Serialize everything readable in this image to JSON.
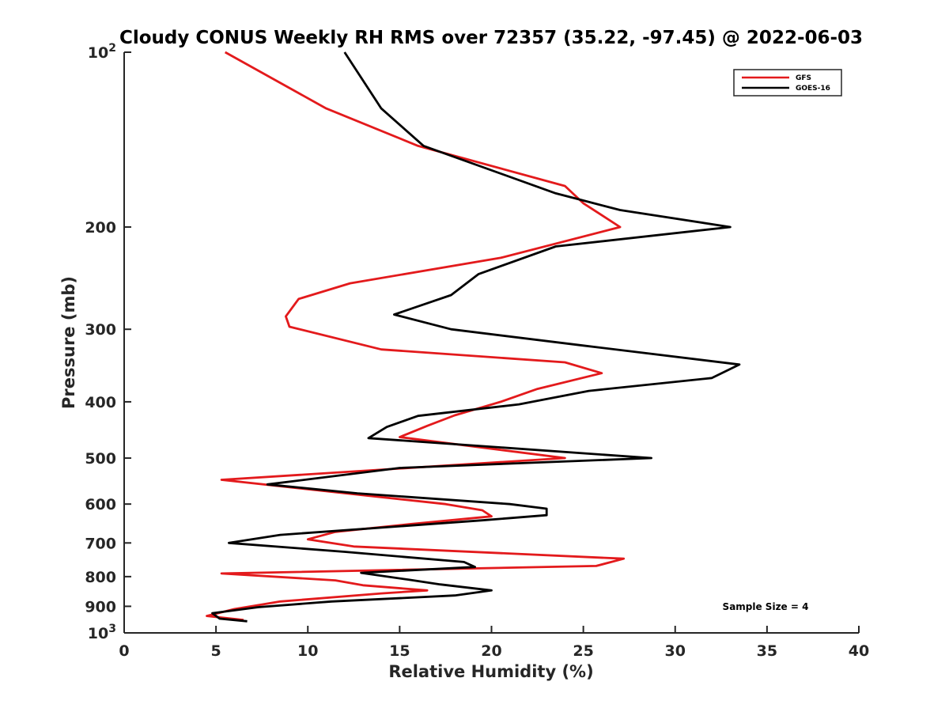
{
  "chart_data": {
    "type": "line",
    "title": "Cloudy CONUS Weekly RH RMS over 72357 (35.22, -97.45) @ 2022-06-03",
    "xlabel": "Relative Humidity (%)",
    "ylabel": "Pressure (mb)",
    "xlim": [
      0,
      40
    ],
    "ylim": [
      100,
      1000
    ],
    "y_scale": "log",
    "y_reversed": true,
    "grid": false,
    "legend_position": "top-right",
    "x_ticks": [
      "0",
      "5",
      "10",
      "15",
      "20",
      "25",
      "30",
      "35",
      "40"
    ],
    "y_ticks": [
      {
        "value": 100,
        "label": "10",
        "sup": "2"
      },
      {
        "value": 200,
        "label": "200",
        "sup": ""
      },
      {
        "value": 300,
        "label": "300",
        "sup": ""
      },
      {
        "value": 400,
        "label": "400",
        "sup": ""
      },
      {
        "value": 500,
        "label": "500",
        "sup": ""
      },
      {
        "value": 600,
        "label": "600",
        "sup": ""
      },
      {
        "value": 700,
        "label": "700",
        "sup": ""
      },
      {
        "value": 800,
        "label": "800",
        "sup": ""
      },
      {
        "value": 900,
        "label": "900",
        "sup": ""
      },
      {
        "value": 1000,
        "label": "10",
        "sup": "3"
      }
    ],
    "annotation": "Sample Size = 4",
    "series": [
      {
        "name": "GFS",
        "color": "#e31a1c",
        "points": [
          [
            5.5,
            100
          ],
          [
            11,
            125
          ],
          [
            16,
            145
          ],
          [
            24,
            170
          ],
          [
            25,
            182
          ],
          [
            27,
            200
          ],
          [
            20.5,
            226
          ],
          [
            12.3,
            250
          ],
          [
            9.5,
            266
          ],
          [
            8.8,
            285
          ],
          [
            9.0,
            297
          ],
          [
            14,
            325
          ],
          [
            24,
            342
          ],
          [
            26,
            357
          ],
          [
            22.5,
            380
          ],
          [
            20.5,
            400
          ],
          [
            18,
            422
          ],
          [
            16.5,
            440
          ],
          [
            15,
            460
          ],
          [
            24,
            500
          ],
          [
            5.3,
            545
          ],
          [
            17.5,
            600
          ],
          [
            19.5,
            615
          ],
          [
            20,
            630
          ],
          [
            15.5,
            650
          ],
          [
            11.5,
            670
          ],
          [
            10,
            690
          ],
          [
            12.5,
            710
          ],
          [
            27.2,
            745
          ],
          [
            25.7,
            767
          ],
          [
            5.3,
            790
          ],
          [
            11.5,
            812
          ],
          [
            13,
            828
          ],
          [
            16.5,
            845
          ],
          [
            14,
            855
          ],
          [
            8.5,
            883
          ],
          [
            6,
            910
          ],
          [
            4.5,
            935
          ],
          [
            6.5,
            950
          ]
        ]
      },
      {
        "name": "GOES-16",
        "color": "#000000",
        "points": [
          [
            12,
            100
          ],
          [
            14,
            125
          ],
          [
            16.3,
            145
          ],
          [
            23.5,
            175
          ],
          [
            27,
            187
          ],
          [
            33,
            200
          ],
          [
            23.5,
            216
          ],
          [
            19.3,
            241
          ],
          [
            17.8,
            262
          ],
          [
            14.7,
            283
          ],
          [
            17.8,
            300
          ],
          [
            25,
            320
          ],
          [
            33.5,
            345
          ],
          [
            32,
            364
          ],
          [
            25.3,
            383
          ],
          [
            21.5,
            404
          ],
          [
            16,
            423
          ],
          [
            14.3,
            442
          ],
          [
            13.3,
            462
          ],
          [
            28.7,
            500
          ],
          [
            15,
            520
          ],
          [
            7.8,
            555
          ],
          [
            12.7,
            575
          ],
          [
            21,
            600
          ],
          [
            23,
            611
          ],
          [
            23,
            627
          ],
          [
            19.5,
            640
          ],
          [
            8.5,
            678
          ],
          [
            5.7,
            700
          ],
          [
            12,
            725
          ],
          [
            18.5,
            755
          ],
          [
            19.1,
            770
          ],
          [
            12.9,
            788
          ],
          [
            15.5,
            810
          ],
          [
            17.2,
            825
          ],
          [
            20,
            845
          ],
          [
            18,
            862
          ],
          [
            11.3,
            883
          ],
          [
            7.3,
            903
          ],
          [
            4.8,
            925
          ],
          [
            5.2,
            945
          ],
          [
            6.7,
            955
          ]
        ]
      }
    ]
  }
}
